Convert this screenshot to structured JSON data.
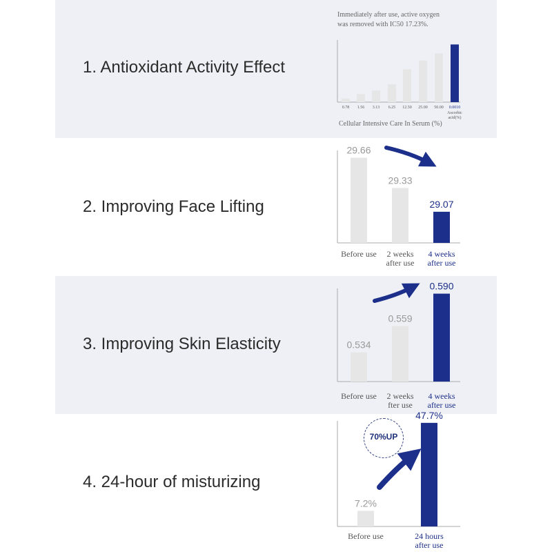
{
  "colors": {
    "highlight": "#1c2f8a",
    "bar": "#e6e6e6",
    "panel": "#eef0f5",
    "axis": "#aaaaaa"
  },
  "sections": [
    {
      "title": "1. Antioxidant Activity Effect",
      "caption_line1": "Immediately after use, active oxygen",
      "caption_line2": "was removed with IC50 17.23%.",
      "xlabel": "Cellular Intensive Care In Serum (%)"
    },
    {
      "title": "2. Improving Face Lifting"
    },
    {
      "title": "3. Improving Skin Elasticity"
    },
    {
      "title": "4. 24-hour of misturizing",
      "badge": "70%UP",
      "arrow_icon": "arrow-curve-icon"
    }
  ],
  "chart_data": [
    {
      "type": "bar",
      "categories": [
        "0.78",
        "1.56",
        "3.13",
        "6.25",
        "12.50",
        "25.00",
        "50.00",
        "0.0010"
      ],
      "category_extra": [
        "",
        "",
        "",
        "",
        "",
        "",
        "",
        "Ascorbic acid(%)"
      ],
      "values": [
        4,
        9,
        13,
        20,
        37,
        47,
        55,
        65
      ],
      "highlight_index": 7,
      "ylim": [
        0,
        70
      ],
      "xlabel": "Cellular Intensive Care In Serum (%)"
    },
    {
      "type": "bar",
      "categories": [
        [
          "Before use"
        ],
        [
          "2 weeks",
          "after use"
        ],
        [
          "4 weeks",
          "after use"
        ]
      ],
      "values": [
        29.66,
        29.33,
        29.07
      ],
      "labels": [
        "29.66",
        "29.33",
        "29.07"
      ],
      "highlight_index": 2,
      "ylim": [
        28.73,
        29.74
      ]
    },
    {
      "type": "bar",
      "categories": [
        [
          "Before use"
        ],
        [
          "2 weeks",
          "fter use"
        ],
        [
          "4 weeks",
          "after use"
        ]
      ],
      "values": [
        0.534,
        0.559,
        0.59
      ],
      "labels": [
        "0.534",
        "0.559",
        "0.590"
      ],
      "highlight_index": 2,
      "ylim": [
        0.506,
        0.595
      ]
    },
    {
      "type": "bar",
      "categories": [
        [
          "Before use"
        ],
        [
          "24 hours",
          "after use"
        ]
      ],
      "values": [
        7.2,
        47.7
      ],
      "labels": [
        "7.2%",
        "47.7%"
      ],
      "highlight_index": 1,
      "ylim": [
        0,
        48.6
      ]
    }
  ]
}
